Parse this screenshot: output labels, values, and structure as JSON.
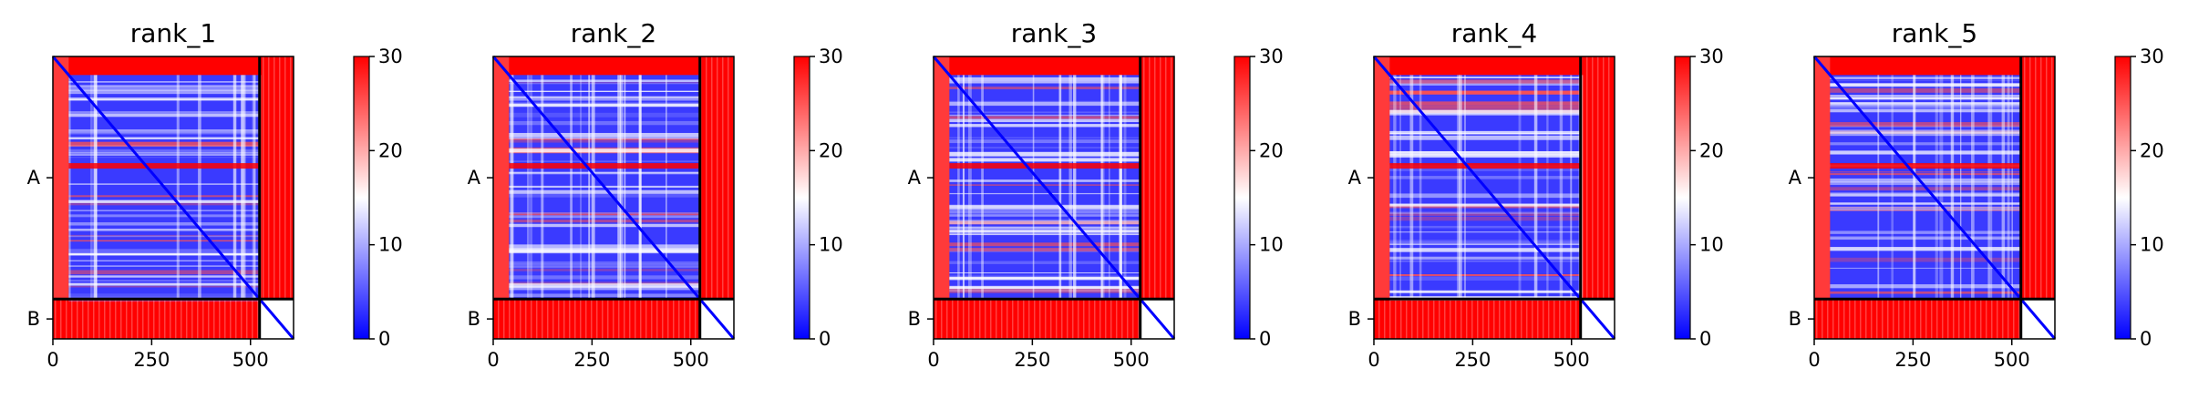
{
  "colors": {
    "low": "#0000ff",
    "mid": "#ffffff",
    "high": "#ff0000",
    "frame": "#000000"
  },
  "chart_data": [
    {
      "type": "heatmap",
      "title": "rank_1",
      "xticks": [
        0,
        250,
        500
      ],
      "x_range": [
        0,
        609
      ],
      "chain_boundary": 523,
      "chain_labels": [
        "A",
        "B"
      ],
      "colorbar": {
        "range": [
          0,
          30
        ],
        "ticks": [
          0,
          10,
          20,
          30
        ]
      }
    },
    {
      "type": "heatmap",
      "title": "rank_2",
      "xticks": [
        0,
        250,
        500
      ],
      "x_range": [
        0,
        609
      ],
      "chain_boundary": 523,
      "chain_labels": [
        "A",
        "B"
      ],
      "colorbar": {
        "range": [
          0,
          30
        ],
        "ticks": [
          0,
          10,
          20,
          30
        ]
      }
    },
    {
      "type": "heatmap",
      "title": "rank_3",
      "xticks": [
        0,
        250,
        500
      ],
      "x_range": [
        0,
        609
      ],
      "chain_boundary": 523,
      "chain_labels": [
        "A",
        "B"
      ],
      "colorbar": {
        "range": [
          0,
          30
        ],
        "ticks": [
          0,
          10,
          20,
          30
        ]
      }
    },
    {
      "type": "heatmap",
      "title": "rank_4",
      "xticks": [
        0,
        250,
        500
      ],
      "x_range": [
        0,
        609
      ],
      "chain_boundary": 523,
      "chain_labels": [
        "A",
        "B"
      ],
      "colorbar": {
        "range": [
          0,
          30
        ],
        "ticks": [
          0,
          10,
          20,
          30
        ]
      }
    },
    {
      "type": "heatmap",
      "title": "rank_5",
      "xticks": [
        0,
        250,
        500
      ],
      "x_range": [
        0,
        609
      ],
      "chain_boundary": 523,
      "chain_labels": [
        "A",
        "B"
      ],
      "colorbar": {
        "range": [
          0,
          30
        ],
        "ticks": [
          0,
          10,
          20,
          30
        ]
      }
    }
  ]
}
